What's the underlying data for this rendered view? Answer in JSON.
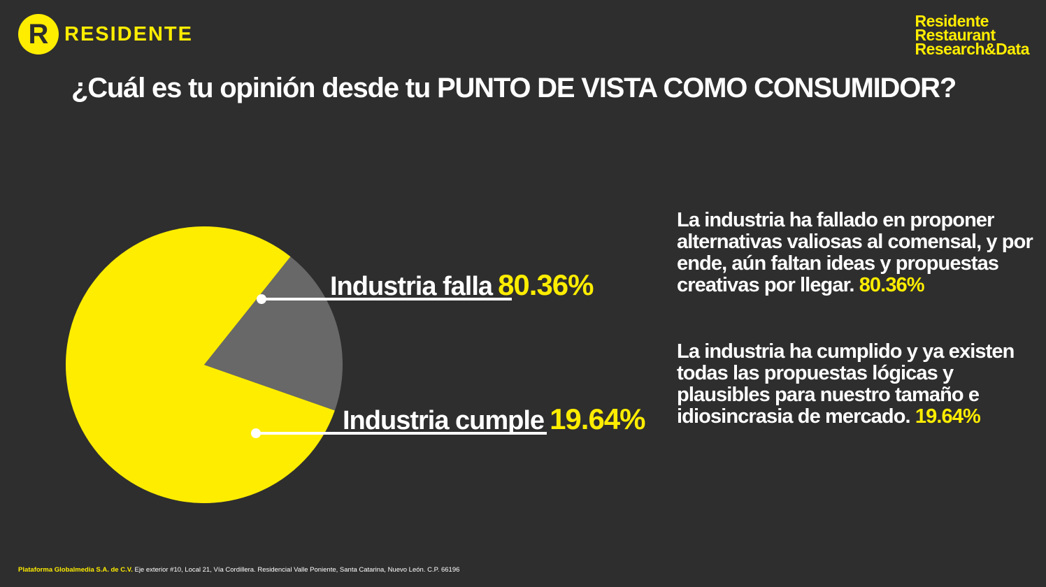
{
  "logo": {
    "mark": "R",
    "word": "RESIDENTE"
  },
  "brand": {
    "line1": "Residente",
    "line2": "Restaurant",
    "line3": "Research&Data"
  },
  "question": "¿Cuál es tu opinión desde tu PUNTO DE VISTA COMO CONSUMIDOR?",
  "chart_data": {
    "type": "pie",
    "title": "¿Cuál es tu opinión desde tu PUNTO DE VISTA COMO CONSUMIDOR?",
    "series": [
      {
        "name": "Industria falla",
        "value": 80.36,
        "label": "80.36%",
        "color": "#ffed00"
      },
      {
        "name": "Industria cumple",
        "value": 19.64,
        "label": "19.64%",
        "color": "#686868"
      }
    ]
  },
  "descriptions": [
    {
      "text": "La industria ha fallado en proponer alternativas valiosas al comensal, y por ende, aún faltan ideas y propuestas creativas por llegar.",
      "pct": "80.36%"
    },
    {
      "text": "La industria ha cumplido y ya existen todas las propuestas lógicas y plausibles para nuestro tamaño e idiosincrasia de mercado.",
      "pct": "19.64%"
    }
  ],
  "footer": {
    "company": "Plataforma Globalmedia S.A. de C.V.",
    "address": "Eje exterior #10, Local 21, Vía Cordillera. Residencial Valle Poniente, Santa Catarina, Nuevo León. C.P. 66196"
  }
}
